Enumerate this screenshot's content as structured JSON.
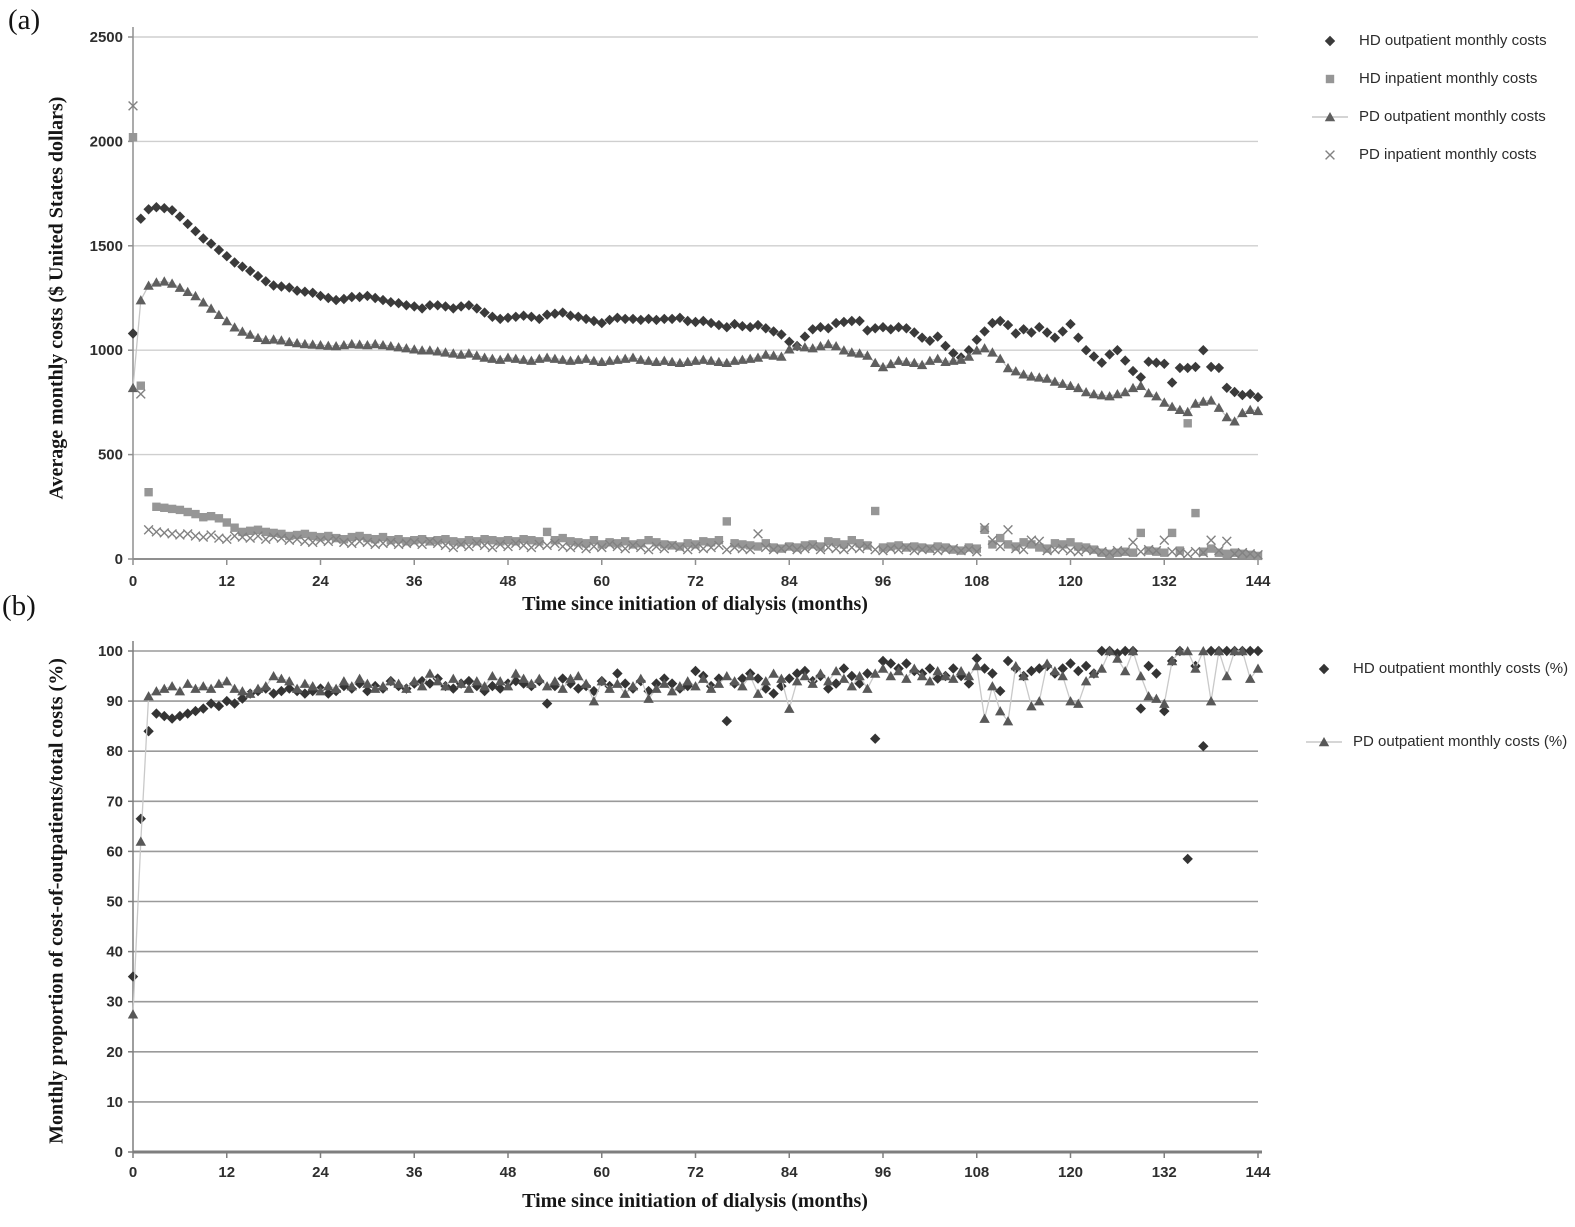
{
  "figure": {
    "panel_count": 2,
    "background": "#ffffff"
  },
  "chart_data": [
    {
      "type": "scatter",
      "panel_id": "a",
      "panel_label": "(a)",
      "title": "",
      "xlabel": "Time since initiation of dialysis (months)",
      "ylabel": "Average monthly costs ($ United States dollars)",
      "xlim": [
        0,
        144
      ],
      "ylim": [
        0,
        2500
      ],
      "xticks": [
        0,
        12,
        24,
        36,
        48,
        60,
        72,
        84,
        96,
        108,
        120,
        132,
        144
      ],
      "yticks": [
        0,
        500,
        1000,
        1500,
        2000,
        2500
      ],
      "grid": "horizontal",
      "grid_color": "#cfcfcf",
      "grid_width": 1.4,
      "axis_color": "#8f8f8f",
      "legend_position": "right-outside",
      "x_months": {
        "start": 0,
        "step": 1
      },
      "series": [
        {
          "id": "hd-outpatient",
          "name": "HD outpatient monthly costs",
          "marker": "diamond",
          "color": "#3a3a3a",
          "line": false,
          "values": [
            1080,
            1630,
            1675,
            1685,
            1680,
            1670,
            1640,
            1605,
            1570,
            1535,
            1510,
            1480,
            1450,
            1420,
            1400,
            1380,
            1355,
            1330,
            1310,
            1305,
            1300,
            1285,
            1280,
            1275,
            1260,
            1250,
            1240,
            1245,
            1255,
            1255,
            1260,
            1250,
            1240,
            1230,
            1225,
            1215,
            1210,
            1200,
            1215,
            1215,
            1210,
            1200,
            1210,
            1215,
            1200,
            1180,
            1160,
            1150,
            1155,
            1160,
            1165,
            1160,
            1150,
            1170,
            1175,
            1180,
            1165,
            1160,
            1150,
            1140,
            1130,
            1145,
            1155,
            1150,
            1150,
            1145,
            1150,
            1145,
            1150,
            1150,
            1155,
            1140,
            1135,
            1140,
            1130,
            1120,
            1110,
            1125,
            1115,
            1110,
            1120,
            1105,
            1090,
            1075,
            1040,
            1020,
            1065,
            1100,
            1110,
            1105,
            1130,
            1135,
            1140,
            1140,
            1095,
            1105,
            1110,
            1100,
            1110,
            1105,
            1085,
            1060,
            1045,
            1065,
            1020,
            985,
            965,
            1000,
            1050,
            1090,
            1130,
            1140,
            1120,
            1080,
            1100,
            1085,
            1110,
            1085,
            1060,
            1090,
            1125,
            1060,
            1000,
            970,
            940,
            980,
            1000,
            950,
            900,
            870,
            945,
            940,
            935,
            845,
            915,
            915,
            920,
            1000,
            920,
            915,
            820,
            800,
            785,
            790,
            775
          ]
        },
        {
          "id": "hd-inpatient",
          "name": "HD inpatient monthly costs",
          "marker": "square",
          "color": "#969696",
          "line": false,
          "values": [
            2020,
            830,
            320,
            250,
            245,
            240,
            235,
            225,
            215,
            200,
            205,
            195,
            175,
            150,
            130,
            135,
            140,
            130,
            125,
            120,
            110,
            115,
            120,
            110,
            105,
            110,
            100,
            95,
            105,
            110,
            100,
            95,
            105,
            90,
            95,
            85,
            90,
            95,
            85,
            90,
            95,
            85,
            80,
            90,
            85,
            95,
            90,
            85,
            90,
            85,
            95,
            90,
            85,
            130,
            90,
            100,
            85,
            80,
            75,
            90,
            70,
            80,
            75,
            85,
            70,
            75,
            90,
            80,
            70,
            65,
            60,
            75,
            70,
            85,
            80,
            90,
            180,
            75,
            70,
            65,
            60,
            75,
            55,
            50,
            60,
            55,
            65,
            70,
            60,
            85,
            80,
            70,
            90,
            75,
            65,
            230,
            55,
            60,
            65,
            55,
            60,
            55,
            50,
            60,
            55,
            45,
            40,
            55,
            50,
            140,
            70,
            100,
            70,
            60,
            80,
            70,
            55,
            50,
            75,
            70,
            80,
            60,
            55,
            45,
            30,
            25,
            30,
            35,
            30,
            125,
            40,
            35,
            30,
            125,
            40,
            650,
            220,
            35,
            50,
            30,
            25,
            30,
            25,
            20,
            15
          ]
        },
        {
          "id": "pd-outpatient",
          "name": "PD outpatient monthly costs",
          "marker": "triangle",
          "color": "#5f5f5f",
          "line": true,
          "line_color": "#c6c6c6",
          "values": [
            820,
            1240,
            1310,
            1325,
            1330,
            1320,
            1300,
            1280,
            1260,
            1230,
            1200,
            1170,
            1140,
            1110,
            1090,
            1075,
            1060,
            1050,
            1052,
            1048,
            1040,
            1035,
            1030,
            1028,
            1025,
            1022,
            1020,
            1025,
            1030,
            1028,
            1025,
            1030,
            1025,
            1020,
            1015,
            1010,
            1005,
            1000,
            1000,
            995,
            990,
            985,
            980,
            985,
            975,
            965,
            960,
            955,
            965,
            960,
            955,
            950,
            960,
            965,
            960,
            955,
            950,
            955,
            960,
            950,
            945,
            950,
            955,
            960,
            965,
            955,
            950,
            945,
            950,
            945,
            940,
            945,
            950,
            955,
            950,
            945,
            940,
            950,
            955,
            960,
            965,
            980,
            975,
            970,
            1005,
            1020,
            1015,
            1010,
            1020,
            1030,
            1020,
            1000,
            990,
            985,
            975,
            940,
            920,
            935,
            950,
            945,
            940,
            930,
            950,
            960,
            945,
            950,
            955,
            970,
            1000,
            1010,
            990,
            960,
            915,
            900,
            885,
            875,
            870,
            865,
            850,
            840,
            830,
            820,
            800,
            790,
            785,
            780,
            790,
            800,
            820,
            830,
            795,
            780,
            750,
            730,
            715,
            705,
            745,
            755,
            760,
            725,
            680,
            660,
            700,
            715,
            710
          ]
        },
        {
          "id": "pd-inpatient",
          "name": "PD inpatient monthly costs",
          "marker": "x",
          "color": "#828282",
          "line": false,
          "values": [
            2170,
            790,
            140,
            130,
            125,
            120,
            115,
            120,
            110,
            105,
            115,
            100,
            95,
            110,
            105,
            100,
            110,
            95,
            105,
            100,
            90,
            95,
            85,
            80,
            90,
            85,
            95,
            80,
            75,
            85,
            80,
            70,
            75,
            80,
            70,
            75,
            80,
            70,
            85,
            75,
            65,
            55,
            70,
            60,
            75,
            65,
            55,
            70,
            60,
            75,
            65,
            55,
            70,
            65,
            75,
            60,
            55,
            65,
            50,
            60,
            55,
            70,
            60,
            50,
            65,
            55,
            45,
            60,
            50,
            65,
            55,
            45,
            60,
            50,
            55,
            65,
            45,
            55,
            50,
            45,
            120,
            55,
            45,
            50,
            55,
            45,
            50,
            60,
            45,
            55,
            50,
            45,
            55,
            50,
            60,
            45,
            40,
            50,
            45,
            55,
            40,
            45,
            50,
            40,
            45,
            50,
            40,
            45,
            35,
            150,
            90,
            60,
            140,
            50,
            45,
            90,
            85,
            40,
            45,
            50,
            40,
            35,
            45,
            40,
            35,
            30,
            40,
            35,
            80,
            35,
            45,
            40,
            90,
            35,
            30,
            25,
            35,
            30,
            90,
            40,
            85,
            25,
            30,
            25,
            20
          ]
        }
      ]
    },
    {
      "type": "scatter",
      "panel_id": "b",
      "panel_label": "(b)",
      "title": "",
      "xlabel": "Time since initiation of dialysis (months)",
      "ylabel": "Monthly proportion of cost-of-outpatients/total costs (%)",
      "xlim": [
        0,
        144
      ],
      "ylim": [
        0,
        100
      ],
      "xticks": [
        0,
        12,
        24,
        36,
        48,
        60,
        72,
        84,
        96,
        108,
        120,
        132,
        144
      ],
      "yticks": [
        0,
        10,
        20,
        30,
        40,
        50,
        60,
        70,
        80,
        90,
        100
      ],
      "grid": "horizontal",
      "grid_color": "#9a9a9a",
      "grid_width": 1.6,
      "axis_color": "#7e7e7e",
      "legend_position": "right-outside",
      "x_months": {
        "start": 0,
        "step": 1
      },
      "series": [
        {
          "id": "hd-outpatient-pct",
          "name": "HD outpatient monthly costs (%)",
          "marker": "diamond",
          "color": "#343434",
          "line": false,
          "values": [
            35,
            66.5,
            84,
            87.5,
            87,
            86.5,
            87,
            87.5,
            88,
            88.5,
            89.5,
            89,
            90,
            89.5,
            90.5,
            91.5,
            92,
            92.5,
            91.5,
            92,
            92.5,
            92,
            91.5,
            92,
            92.5,
            91.5,
            92,
            93,
            92.5,
            93.5,
            92,
            93,
            92.5,
            94,
            93,
            92.5,
            93.5,
            94,
            93.5,
            94.5,
            93,
            92.5,
            93.5,
            94,
            93,
            92,
            93,
            92.5,
            93.5,
            94,
            93.5,
            93,
            94,
            89.5,
            93,
            94.5,
            93.5,
            92.5,
            93,
            92,
            94,
            93,
            95.5,
            93.5,
            92.5,
            94,
            92,
            93.5,
            94.5,
            93.5,
            92.5,
            93,
            96,
            95,
            93,
            94.5,
            86,
            93.5,
            94.5,
            95.5,
            94.5,
            92.5,
            91.5,
            93,
            94.5,
            95.5,
            96,
            94,
            95,
            92.5,
            93.5,
            96.5,
            95,
            93.5,
            95.5,
            82.5,
            98,
            97.5,
            96.5,
            97.5,
            96,
            95.5,
            96.5,
            94.5,
            95,
            96.5,
            95,
            93.5,
            98.5,
            96.5,
            95.5,
            92,
            98,
            96.5,
            95,
            96,
            96.5,
            97,
            95.5,
            96.5,
            97.5,
            96,
            97,
            95.5,
            100,
            100,
            99.5,
            100,
            100,
            88.5,
            97,
            95.5,
            88,
            98,
            100,
            58.5,
            97,
            81,
            100,
            100,
            100,
            100,
            100,
            100,
            100
          ]
        },
        {
          "id": "pd-outpatient-pct",
          "name": "PD outpatient monthly costs (%)",
          "marker": "triangle",
          "color": "#585858",
          "line": true,
          "line_color": "#c9c9c9",
          "values": [
            27.5,
            62,
            91,
            92,
            92.5,
            93,
            92,
            93.5,
            92.5,
            93,
            92.5,
            93.5,
            94,
            92.5,
            92,
            91.5,
            92.5,
            93,
            95,
            94.5,
            94,
            92.5,
            93.5,
            93,
            92,
            93,
            92.5,
            94,
            93,
            94.5,
            93.5,
            92.5,
            93,
            94,
            93.5,
            92.5,
            94,
            93,
            95.5,
            94,
            93,
            94.5,
            93.5,
            92.5,
            94,
            93,
            95,
            94,
            93,
            95.5,
            94.5,
            93.5,
            94.5,
            93,
            94,
            92.5,
            94.5,
            95,
            93.5,
            90,
            94,
            92.5,
            93.5,
            91.5,
            93,
            94.5,
            90.5,
            92.5,
            93.5,
            92,
            93,
            94,
            93,
            94.5,
            92.5,
            93.5,
            95,
            94,
            93,
            95,
            91.5,
            94,
            95.5,
            94.5,
            88.5,
            94,
            95,
            93.5,
            95.5,
            94,
            96,
            94.5,
            93,
            95,
            92.5,
            95.5,
            96.5,
            95,
            96,
            94.5,
            96.5,
            95,
            94,
            96,
            95,
            94.5,
            96,
            95,
            97,
            86.5,
            93,
            88,
            86,
            97,
            95,
            89,
            90,
            97.5,
            96,
            95,
            90,
            89.5,
            94,
            95.5,
            96.5,
            100,
            98.5,
            96,
            100,
            95,
            91,
            90.5,
            89.5,
            98,
            100,
            100,
            96.5,
            100,
            90,
            100,
            95,
            100,
            100,
            94.5,
            96.5
          ]
        }
      ]
    }
  ]
}
